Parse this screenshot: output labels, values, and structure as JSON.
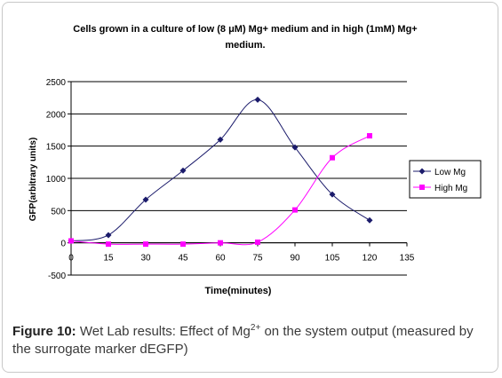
{
  "chart_data": {
    "type": "line",
    "title_line1": "Cells grown in a culture of low (8 μM) Mg+ medium and in high (1mM) Mg+",
    "title_line2": "medium.",
    "xlabel": "Time(minutes)",
    "ylabel": "GFP(arbitrary units)",
    "xlim": [
      0,
      135
    ],
    "ylim": [
      -500,
      2500
    ],
    "xticks": [
      0,
      15,
      30,
      45,
      60,
      75,
      90,
      105,
      120,
      135
    ],
    "yticks": [
      -500,
      0,
      500,
      1000,
      1500,
      2000,
      2500
    ],
    "grid": "horizontal",
    "legend_position": "right",
    "series": [
      {
        "name": "Low Mg",
        "color": "#1b1b6b",
        "marker": "diamond",
        "x": [
          0,
          15,
          30,
          45,
          60,
          75,
          90,
          105,
          120
        ],
        "y": [
          30,
          120,
          670,
          1120,
          1600,
          2220,
          1480,
          750,
          350
        ]
      },
      {
        "name": "High Mg",
        "color": "#ff00ff",
        "marker": "square",
        "x": [
          0,
          15,
          30,
          45,
          60,
          75,
          90,
          105,
          120
        ],
        "y": [
          30,
          -20,
          -20,
          -20,
          0,
          10,
          510,
          1320,
          1660
        ]
      }
    ]
  },
  "caption": {
    "label": "Figure 10:",
    "text_before_sup": " Wet Lab results: Effect of Mg",
    "sup": "2+",
    "text_after_sup": " on the system output (measured by the surrogate marker dEGFP)"
  }
}
